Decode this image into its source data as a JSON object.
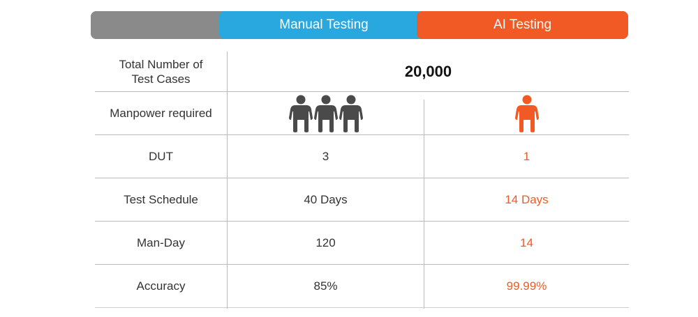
{
  "header": {
    "manual_label": "Manual Testing",
    "ai_label": "AI Testing"
  },
  "colors": {
    "manual": "#29a8e0",
    "ai": "#f15a24",
    "neutral": "#8a8a8a",
    "person_manual": "#4a4a4a",
    "person_ai": "#f15a24"
  },
  "table": {
    "total": {
      "label_line1": "Total Number of",
      "label_line2": "Test Cases",
      "value": "20,000"
    },
    "manpower": {
      "label": "Manpower required",
      "manual_people": 3,
      "ai_people": 1,
      "icon": "person-icon"
    },
    "rows": [
      {
        "label": "DUT",
        "manual": "3",
        "ai": "1"
      },
      {
        "label": "Test Schedule",
        "manual": "40 Days",
        "ai": "14 Days"
      },
      {
        "label": "Man-Day",
        "manual": "120",
        "ai": "14"
      },
      {
        "label": "Accuracy",
        "manual": "85%",
        "ai": "99.99%"
      }
    ]
  }
}
